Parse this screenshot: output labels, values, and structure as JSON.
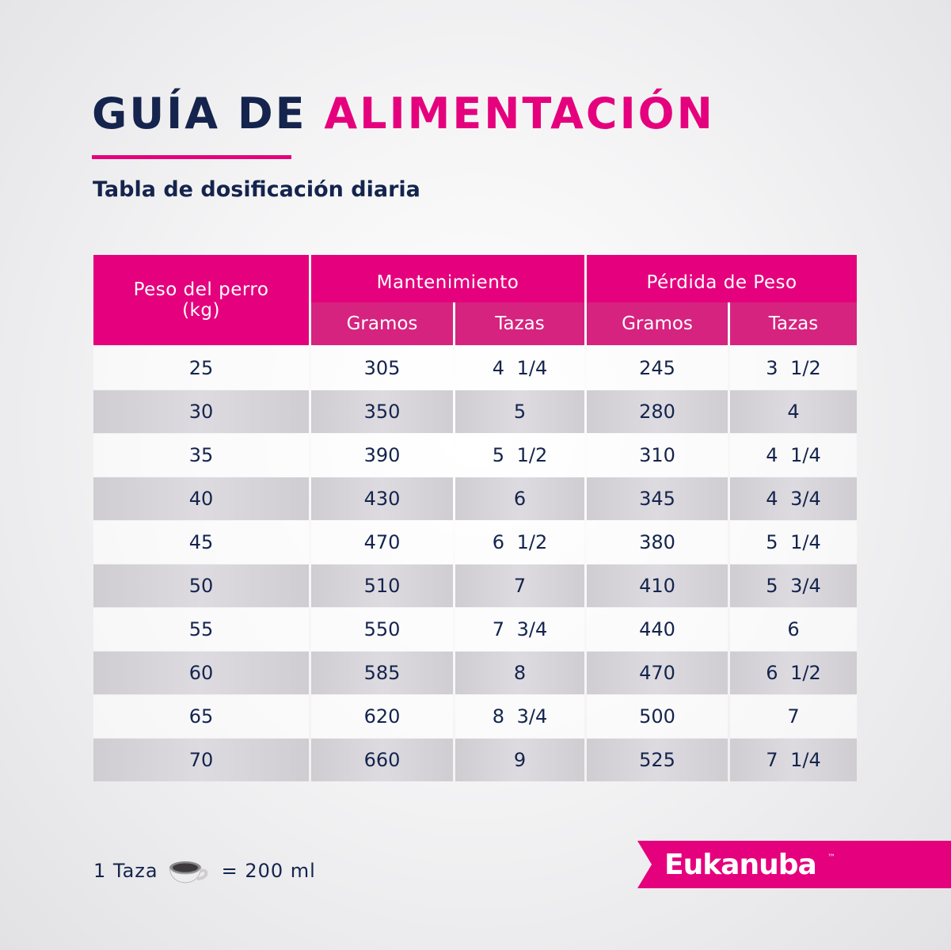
{
  "header": {
    "title_dark": "GUÍA DE",
    "title_pink": "ALIMENTACIÓN",
    "subtitle": "Tabla de dosificación diaria"
  },
  "table": {
    "first_header": "Peso del perro (kg)",
    "groups": [
      "Mantenimiento",
      "Pérdida de Peso"
    ],
    "subheaders": [
      "Gramos",
      "Tazas",
      "Gramos",
      "Tazas"
    ],
    "rows": [
      [
        "25",
        "305",
        "4 1/4",
        "245",
        "3 1/2"
      ],
      [
        "30",
        "350",
        "5",
        "280",
        "4"
      ],
      [
        "35",
        "390",
        "5 1/2",
        "310",
        "4 1/4"
      ],
      [
        "40",
        "430",
        "6",
        "345",
        "4 3/4"
      ],
      [
        "45",
        "470",
        "6 1/2",
        "380",
        "5 1/4"
      ],
      [
        "50",
        "510",
        "7",
        "410",
        "5 3/4"
      ],
      [
        "55",
        "550",
        "7 3/4",
        "440",
        "6"
      ],
      [
        "60",
        "585",
        "8",
        "470",
        "6 1/2"
      ],
      [
        "65",
        "620",
        "8 3/4",
        "500",
        "7"
      ],
      [
        "70",
        "660",
        "9",
        "525",
        "7 1/4"
      ]
    ]
  },
  "footer": {
    "cup_left": "1 Taza",
    "cup_right": "= 200 ml",
    "brand": "Eukanuba",
    "trademark": "™"
  }
}
